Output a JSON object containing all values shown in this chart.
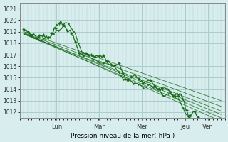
{
  "bg_color": "#d8eeee",
  "plot_bg_color": "#d8eeee",
  "grid_color": "#aacccc",
  "line_color": "#1a6b1a",
  "ylim": [
    1011.5,
    1021.5
  ],
  "ylabel": "Pression niveau de la mer( hPa )",
  "yticks": [
    1012,
    1013,
    1014,
    1015,
    1016,
    1017,
    1018,
    1019,
    1020,
    1021
  ],
  "day_labels": [
    "Lun",
    "Mar",
    "Mer",
    "Jeu",
    "Ven"
  ],
  "day_positions": [
    0.167,
    0.383,
    0.6,
    0.817,
    0.933
  ],
  "num_points": 120
}
